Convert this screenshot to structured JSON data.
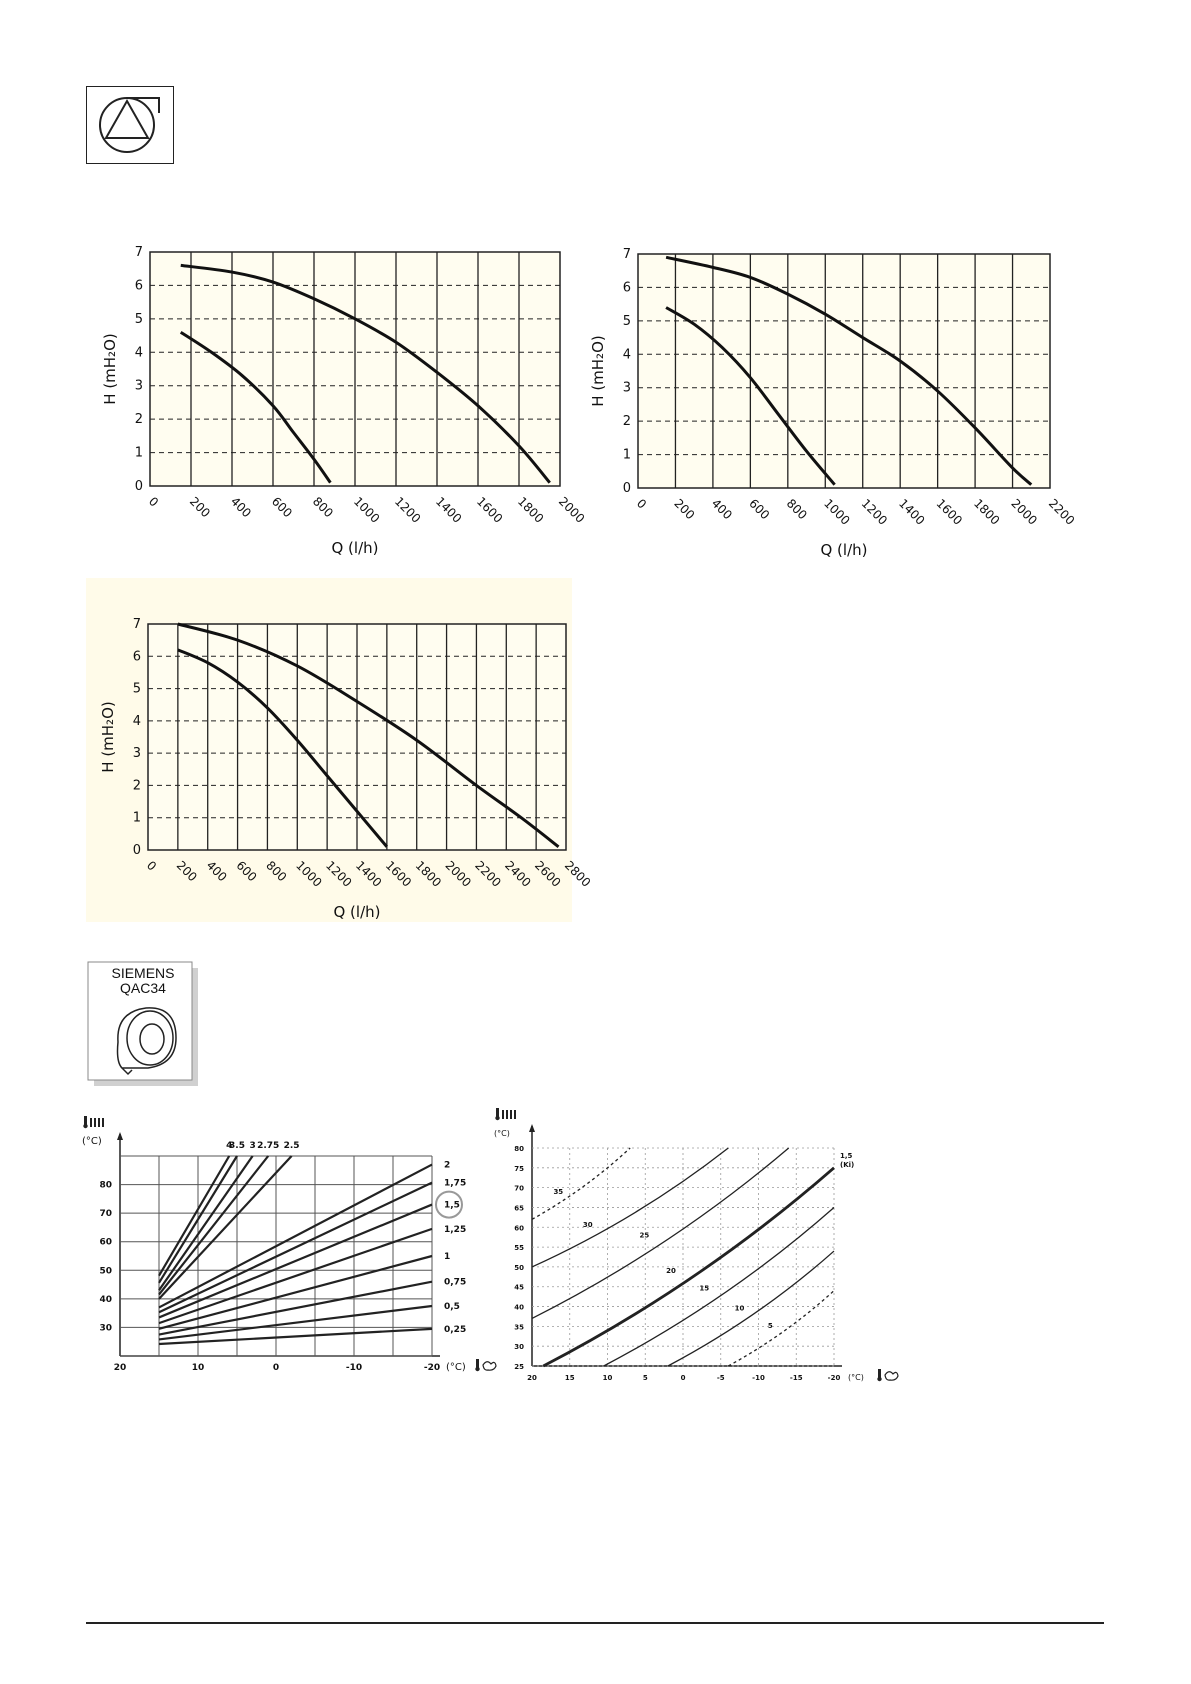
{
  "colors": {
    "plot_bg": "#fffdf0",
    "panel_bg": "#fffbe9",
    "grid": "#222222",
    "curve": "#111111",
    "accent_circle": "#999999"
  },
  "icons": {
    "pump": "pump-symbol-icon",
    "qac34": "siemens-qac34-sensor-icon"
  },
  "qac34": {
    "brand": "SIEMENS",
    "model": "QAC34"
  },
  "chart_data": [
    {
      "type": "line",
      "xlabel": "Q (l/h)",
      "ylabel": "H (mH₂O)",
      "xlim": [
        0,
        2000
      ],
      "ylim": [
        0,
        7
      ],
      "xticks": [
        "0",
        "200",
        "400",
        "600",
        "800",
        "1000",
        "1200",
        "1400",
        "1600",
        "1800",
        "2000"
      ],
      "yticks": [
        "0",
        "1",
        "2",
        "3",
        "4",
        "5",
        "6",
        "7"
      ],
      "grid": true,
      "series": [
        {
          "x": [
            150,
            400,
            600,
            800,
            1000,
            1200,
            1400,
            1600,
            1800,
            1950
          ],
          "y": [
            6.6,
            6.4,
            6.1,
            5.6,
            5.0,
            4.3,
            3.4,
            2.4,
            1.2,
            0.1
          ]
        },
        {
          "x": [
            150,
            300,
            450,
            600,
            700,
            800,
            880
          ],
          "y": [
            4.6,
            4.0,
            3.3,
            2.4,
            1.6,
            0.8,
            0.1
          ]
        }
      ]
    },
    {
      "type": "line",
      "xlabel": "Q (l/h)",
      "ylabel": "H (mH₂O)",
      "xlim": [
        0,
        2200
      ],
      "ylim": [
        0,
        7
      ],
      "xticks": [
        "0",
        "200",
        "400",
        "600",
        "800",
        "1000",
        "1200",
        "1400",
        "1600",
        "1800",
        "2000",
        "2200"
      ],
      "yticks": [
        "0",
        "1",
        "2",
        "3",
        "4",
        "5",
        "6",
        "7"
      ],
      "grid": true,
      "series": [
        {
          "x": [
            150,
            400,
            600,
            800,
            1000,
            1200,
            1400,
            1600,
            1800,
            2000,
            2100
          ],
          "y": [
            6.9,
            6.6,
            6.3,
            5.8,
            5.2,
            4.5,
            3.8,
            2.9,
            1.8,
            0.6,
            0.1
          ]
        },
        {
          "x": [
            150,
            300,
            450,
            600,
            750,
            900,
            1050
          ],
          "y": [
            5.4,
            4.9,
            4.2,
            3.3,
            2.2,
            1.1,
            0.1
          ]
        }
      ]
    },
    {
      "type": "line",
      "xlabel": "Q (l/h)",
      "ylabel": "H (mH₂O)",
      "xlim": [
        0,
        2800
      ],
      "ylim": [
        0,
        7
      ],
      "xticks": [
        "0",
        "200",
        "400",
        "600",
        "800",
        "1000",
        "1200",
        "1400",
        "1600",
        "1800",
        "2000",
        "2200",
        "2400",
        "2600",
        "2800"
      ],
      "yticks": [
        "0",
        "1",
        "2",
        "3",
        "4",
        "5",
        "6",
        "7"
      ],
      "grid": true,
      "series": [
        {
          "x": [
            200,
            600,
            1000,
            1400,
            1800,
            2200,
            2500,
            2750
          ],
          "y": [
            7.0,
            6.5,
            5.7,
            4.6,
            3.4,
            2.0,
            1.0,
            0.1
          ]
        },
        {
          "x": [
            200,
            400,
            600,
            800,
            1000,
            1200,
            1400,
            1600
          ],
          "y": [
            6.2,
            5.8,
            5.2,
            4.4,
            3.4,
            2.3,
            1.2,
            0.1
          ]
        }
      ]
    },
    {
      "type": "line",
      "ylabel": "(°C)",
      "xlabel": "(°C)",
      "xlim": [
        20,
        -20
      ],
      "ylim": [
        20,
        90
      ],
      "xticks": [
        "20",
        "10",
        "0",
        "-10",
        "-20"
      ],
      "yticks": [
        "30",
        "40",
        "50",
        "60",
        "70",
        "80"
      ],
      "grid": true,
      "highlight": "1,5",
      "series": [
        {
          "name": "4",
          "x": [
            15,
            6
          ],
          "y": [
            48.1,
            90
          ]
        },
        {
          "name": "3.5",
          "x": [
            15,
            5
          ],
          "y": [
            45.6,
            90
          ]
        },
        {
          "name": "3",
          "x": [
            15,
            3
          ],
          "y": [
            43.0,
            90
          ]
        },
        {
          "name": "2.75",
          "x": [
            15,
            1
          ],
          "y": [
            41.5,
            90
          ]
        },
        {
          "name": "2.5",
          "x": [
            15,
            -2
          ],
          "y": [
            40.0,
            90
          ]
        },
        {
          "name": "2",
          "x": [
            15,
            -20
          ],
          "y": [
            37.0,
            87.0
          ]
        },
        {
          "name": "1,75",
          "x": [
            15,
            -20
          ],
          "y": [
            35.3,
            80.7
          ]
        },
        {
          "name": "1,5",
          "x": [
            15,
            -20
          ],
          "y": [
            33.5,
            73.0
          ]
        },
        {
          "name": "1,25",
          "x": [
            15,
            -20
          ],
          "y": [
            31.5,
            64.5
          ]
        },
        {
          "name": "1",
          "x": [
            15,
            -20
          ],
          "y": [
            29.5,
            55.0
          ]
        },
        {
          "name": "0,75",
          "x": [
            15,
            -20
          ],
          "y": [
            27.5,
            46.0
          ]
        },
        {
          "name": "0,5",
          "x": [
            15,
            -20
          ],
          "y": [
            25.8,
            37.5
          ]
        },
        {
          "name": "0,25",
          "x": [
            15,
            -20
          ],
          "y": [
            24.2,
            29.5
          ]
        }
      ]
    },
    {
      "type": "line",
      "ylabel": "(°C)",
      "xlabel": "(°C)",
      "xlim": [
        20,
        -20
      ],
      "ylim": [
        25,
        80
      ],
      "xticks": [
        "20",
        "15",
        "10",
        "5",
        "0",
        "-5",
        "-10",
        "-15",
        "-20"
      ],
      "yticks": [
        "25",
        "30",
        "35",
        "40",
        "45",
        "50",
        "55",
        "60",
        "65",
        "70",
        "75",
        "80"
      ],
      "grid": true,
      "legend_note": "1,5 (Ki)",
      "series": [
        {
          "name": "35",
          "x": [
            20,
            7
          ],
          "y": [
            62,
            80
          ]
        },
        {
          "name": "30",
          "x": [
            20,
            -6
          ],
          "y": [
            50,
            80
          ]
        },
        {
          "name": "25",
          "x": [
            20,
            -14
          ],
          "y": [
            37,
            80
          ]
        },
        {
          "name": "20",
          "x": [
            18.5,
            -20
          ],
          "y": [
            25,
            75
          ]
        },
        {
          "name": "15",
          "x": [
            10.5,
            -20
          ],
          "y": [
            25,
            65
          ]
        },
        {
          "name": "10",
          "x": [
            2,
            -20
          ],
          "y": [
            25,
            54
          ]
        },
        {
          "name": "5",
          "x": [
            -6,
            -20
          ],
          "y": [
            25,
            44
          ]
        }
      ]
    }
  ]
}
